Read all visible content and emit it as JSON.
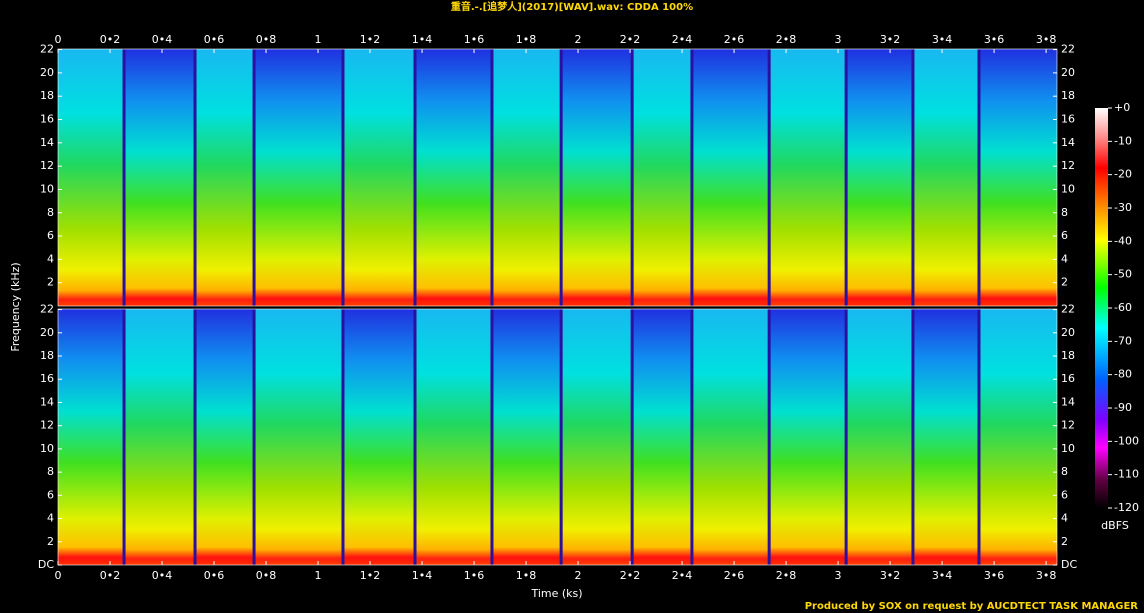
{
  "title": "重音.-.[追梦人](2017)[WAV].wav: CDDA 100%",
  "footer": "Produced by SOX on request by AUCDTECT TASK MANAGER",
  "chart_data": [
    {
      "type": "spectrogram",
      "ylabel": "Frequency (kHz)",
      "xlim": [
        0,
        3.842
      ],
      "xticks": [
        0,
        {
          "value": 0.2,
          "label": "0•2"
        },
        {
          "value": 0.4,
          "label": "0•4"
        },
        {
          "value": 0.6,
          "label": "0•6"
        },
        {
          "value": 0.8,
          "label": "0•8"
        },
        1,
        {
          "value": 1.2,
          "label": "1•2"
        },
        {
          "value": 1.4,
          "label": "1•4"
        },
        {
          "value": 1.6,
          "label": "1•6"
        },
        {
          "value": 1.8,
          "label": "1•8"
        },
        2,
        {
          "value": 2.2,
          "label": "2•2"
        },
        {
          "value": 2.4,
          "label": "2•4"
        },
        {
          "value": 2.6,
          "label": "2•6"
        },
        {
          "value": 2.8,
          "label": "2•8"
        },
        3,
        {
          "value": 3.2,
          "label": "3•2"
        },
        {
          "value": 3.4,
          "label": "3•4"
        },
        {
          "value": 3.6,
          "label": "3•6"
        },
        {
          "value": 3.8,
          "label": "3•8"
        }
      ],
      "ylim": [
        0,
        22.05
      ],
      "yticks": [
        2,
        4,
        6,
        8,
        10,
        12,
        14,
        16,
        18,
        20,
        22
      ],
      "track_boundaries": [
        0.254,
        0.527,
        0.754,
        1.096,
        1.373,
        1.669,
        1.935,
        2.208,
        2.438,
        2.735,
        3.031,
        3.288,
        3.542
      ]
    },
    {
      "type": "spectrogram",
      "xlabel": "Time (ks)",
      "xlim": [
        0,
        3.842
      ],
      "xticks": [
        0,
        {
          "value": 0.2,
          "label": "0•2"
        },
        {
          "value": 0.4,
          "label": "0•4"
        },
        {
          "value": 0.6,
          "label": "0•6"
        },
        {
          "value": 0.8,
          "label": "0•8"
        },
        1,
        {
          "value": 1.2,
          "label": "1•2"
        },
        {
          "value": 1.4,
          "label": "1•4"
        },
        {
          "value": 1.6,
          "label": "1•6"
        },
        {
          "value": 1.8,
          "label": "1•8"
        },
        2,
        {
          "value": 2.2,
          "label": "2•2"
        },
        {
          "value": 2.4,
          "label": "2•4"
        },
        {
          "value": 2.6,
          "label": "2•6"
        },
        {
          "value": 2.8,
          "label": "2•8"
        },
        3,
        {
          "value": 3.2,
          "label": "3•2"
        },
        {
          "value": 3.4,
          "label": "3•4"
        },
        {
          "value": 3.6,
          "label": "3•6"
        },
        {
          "value": 3.8,
          "label": "3•8"
        }
      ],
      "ylim": [
        0,
        22.05
      ],
      "yticks": [
        {
          "value": 0,
          "label": "DC"
        },
        2,
        4,
        6,
        8,
        10,
        12,
        14,
        16,
        18,
        20,
        22
      ],
      "track_boundaries": [
        0.254,
        0.527,
        0.754,
        1.096,
        1.373,
        1.669,
        1.935,
        2.208,
        2.438,
        2.735,
        3.031,
        3.288,
        3.542
      ]
    }
  ],
  "colorbar": {
    "label": "dBFS",
    "ylim": [
      -120,
      0
    ],
    "ticks": [
      {
        "value": 0,
        "label": "+0"
      },
      -10,
      -20,
      -30,
      -40,
      -50,
      -60,
      -70,
      -80,
      -90,
      -100,
      -110,
      -120
    ]
  }
}
